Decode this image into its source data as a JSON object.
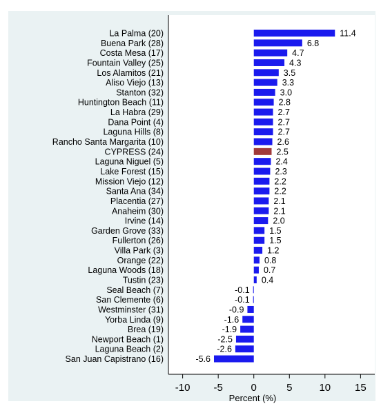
{
  "chart_data": {
    "type": "bar",
    "orientation": "horizontal",
    "categories": [
      "La Palma (20)",
      "Buena Park (28)",
      "Costa Mesa (17)",
      "Fountain Valley (25)",
      "Los Alamitos (21)",
      "Aliso Viejo (13)",
      "Stanton (32)",
      "Huntington Beach (11)",
      "La Habra (29)",
      "Dana Point  (4)",
      "Laguna Hills  (8)",
      "Rancho Santa Margarita (10)",
      "CYPRESS (24)",
      "Laguna Niguel  (5)",
      "Lake Forest (15)",
      "Mission Viejo (12)",
      "Santa Ana (34)",
      "Placentia (27)",
      "Anaheim (30)",
      "Irvine (14)",
      "Garden Grove (33)",
      "Fullerton (26)",
      "Villa Park  (3)",
      "Orange (22)",
      "Laguna Woods (18)",
      "Tustin (23)",
      "Seal Beach  (7)",
      "San Clemente  (6)",
      "Westminster (31)",
      "Yorba Linda  (9)",
      "Brea (19)",
      "Newport Beach  (1)",
      "Laguna Beach  (2)",
      "San Juan Capistrano (16)"
    ],
    "values": [
      11.4,
      6.8,
      4.7,
      4.3,
      3.5,
      3.3,
      3.0,
      2.8,
      2.7,
      2.7,
      2.7,
      2.6,
      2.5,
      2.4,
      2.3,
      2.2,
      2.2,
      2.1,
      2.1,
      2.0,
      1.5,
      1.5,
      1.2,
      0.8,
      0.7,
      0.4,
      -0.1,
      -0.1,
      -0.9,
      -1.6,
      -1.9,
      -2.5,
      -2.6,
      -5.6
    ],
    "value_labels": [
      "11.4",
      "6.8",
      "4.7",
      "4.3",
      "3.5",
      "3.3",
      "3.0",
      "2.8",
      "2.7",
      "2.7",
      "2.7",
      "2.6",
      "2.5",
      "2.4",
      "2.3",
      "2.2",
      "2.2",
      "2.1",
      "2.1",
      "2.0",
      "1.5",
      "1.5",
      "1.2",
      "0.8",
      "0.7",
      "0.4",
      "-0.1",
      "-0.1",
      "-0.9",
      "-1.6",
      "-1.9",
      "-2.5",
      "-2.6",
      "-5.6"
    ],
    "highlight": "CYPRESS (24)",
    "colors": {
      "bar": "#1a1aee",
      "highlight": "#a13a3a",
      "axis": "#000000"
    },
    "xlim": [
      -12,
      17
    ],
    "xticks": [
      -10,
      -5,
      0,
      5,
      10,
      15
    ],
    "xlabel": "Percent (%)",
    "title": "",
    "grid": false,
    "legend": "none"
  }
}
